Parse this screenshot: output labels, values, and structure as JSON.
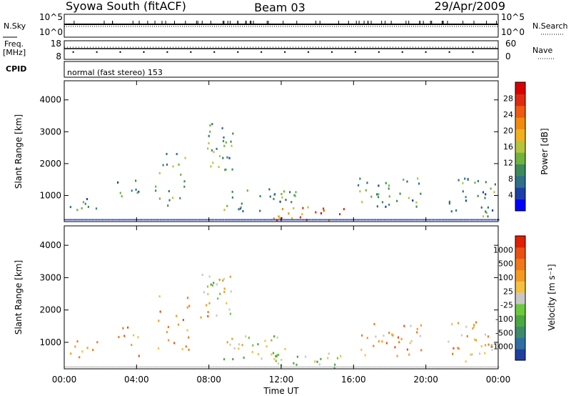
{
  "header": {
    "station": "Syowa South (fitACF)",
    "beam": "Beam 03",
    "date": "29/Apr/2009"
  },
  "status_panel": {
    "nsky_label": "N.Sky",
    "nsky_ticks": [
      "10^5",
      "10^0"
    ],
    "nsearch_label": "N.Search",
    "nsearch_ticks": [
      "10^5",
      "10^0"
    ],
    "freq_label_1": "Freq.",
    "freq_label_2": "[MHz]",
    "freq_ticks": [
      "18",
      "8"
    ],
    "nave_label": "Nave",
    "nave_ticks": [
      "60",
      "0"
    ],
    "cpid_label": "CPID",
    "cpid_value": "normal (fast stereo) 153"
  },
  "chart_data": [
    {
      "type": "heatmap",
      "name": "power",
      "ylabel": "Slant Range [km]",
      "yticks": [
        "4000",
        "3000",
        "2000",
        "1000"
      ],
      "ytick_values": [
        4000,
        3000,
        2000,
        1000
      ],
      "ylim": [
        180,
        4600
      ],
      "xlim_hours": [
        0,
        24
      ],
      "colorbar": {
        "label": "Power [dB]",
        "ticks": [
          "28",
          "24",
          "20",
          "16",
          "12",
          "8",
          "4"
        ],
        "colors": [
          "#0000ff",
          "#1a3fa8",
          "#2f6f88",
          "#3d8a5a",
          "#6fb23c",
          "#b6c43a",
          "#f0b020",
          "#f28a10",
          "#ee5a10",
          "#e02a10",
          "#d80000"
        ]
      },
      "echo_regions": [
        {
          "t": [
            0.3,
            1.8
          ],
          "r": [
            500,
            1100
          ],
          "density": 0.55
        },
        {
          "t": [
            2.8,
            4.2
          ],
          "r": [
            600,
            1500
          ],
          "density": 0.4
        },
        {
          "t": [
            5.0,
            7.0
          ],
          "r": [
            700,
            2600
          ],
          "density": 0.3
        },
        {
          "t": [
            7.5,
            9.3
          ],
          "r": [
            1800,
            3300
          ],
          "density": 0.6
        },
        {
          "t": [
            8.8,
            12.8
          ],
          "r": [
            500,
            1300
          ],
          "density": 0.5
        },
        {
          "t": [
            11.5,
            15.5
          ],
          "r": [
            250,
            700
          ],
          "density": 0.7
        },
        {
          "t": [
            16.2,
            19.8
          ],
          "r": [
            600,
            1600
          ],
          "density": 0.5
        },
        {
          "t": [
            21.2,
            23.8
          ],
          "r": [
            350,
            1700
          ],
          "density": 0.5
        }
      ]
    },
    {
      "type": "heatmap",
      "name": "velocity",
      "ylabel": "Slant Range [km]",
      "yticks": [
        "4000",
        "3000",
        "2000",
        "1000"
      ],
      "ytick_values": [
        4000,
        3000,
        2000,
        1000
      ],
      "ylim": [
        180,
        4600
      ],
      "xlim_hours": [
        0,
        24
      ],
      "colorbar": {
        "label": "Velocity [m s⁻¹]",
        "ticks": [
          "1000",
          "500",
          "100",
          "25",
          "-25",
          "-100",
          "-500",
          "-1000"
        ],
        "colors": [
          "#1f3fa0",
          "#2f6fa0",
          "#3d8a6a",
          "#4aa840",
          "#6cc83c",
          "#c8c8c8",
          "#f5c040",
          "#f49a20",
          "#f07818",
          "#ec5010",
          "#e02000"
        ]
      },
      "echo_regions": [
        {
          "t": [
            0.3,
            1.8
          ],
          "r": [
            500,
            1100
          ],
          "density": 0.55
        },
        {
          "t": [
            2.8,
            4.2
          ],
          "r": [
            600,
            1500
          ],
          "density": 0.4
        },
        {
          "t": [
            5.0,
            7.0
          ],
          "r": [
            700,
            2600
          ],
          "density": 0.3
        },
        {
          "t": [
            7.5,
            9.3
          ],
          "r": [
            1800,
            3300
          ],
          "density": 0.6
        },
        {
          "t": [
            8.8,
            12.8
          ],
          "r": [
            500,
            1300
          ],
          "density": 0.5
        },
        {
          "t": [
            11.5,
            15.5
          ],
          "r": [
            250,
            700
          ],
          "density": 0.7
        },
        {
          "t": [
            16.2,
            19.8
          ],
          "r": [
            600,
            1600
          ],
          "density": 0.5
        },
        {
          "t": [
            21.2,
            23.8
          ],
          "r": [
            350,
            1700
          ],
          "density": 0.5
        }
      ]
    }
  ],
  "x_axis": {
    "ticks": [
      "00:00",
      "04:00",
      "08:00",
      "12:00",
      "16:00",
      "20:00",
      "00:00"
    ],
    "tick_hours": [
      0,
      4,
      8,
      12,
      16,
      20,
      24
    ],
    "label": "Time UT"
  }
}
